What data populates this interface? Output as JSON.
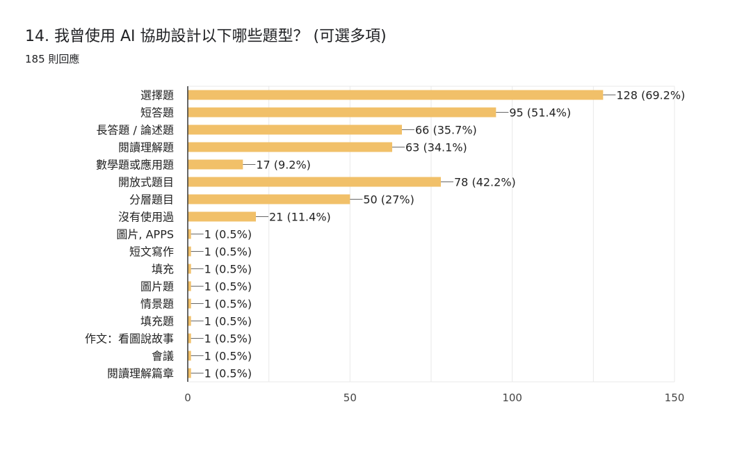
{
  "header": {
    "title": "14. 我曾使用 AI 協助設計以下哪些題型？ (可選多項)",
    "responses": "185 則回應"
  },
  "chart_data": {
    "type": "bar",
    "orientation": "horizontal",
    "categories": [
      "選擇題",
      "短答題",
      "長答題 / 論述題",
      "閱讀理解題",
      "數學題或應用題",
      "開放式題目",
      "分層題目",
      "沒有使用過",
      "圖片, APPS",
      "短文寫作",
      "填充",
      "圖片題",
      "情景題",
      "填充題",
      "作文：看圖說故事",
      "會議",
      "閱讀理解篇章"
    ],
    "values": [
      128,
      95,
      66,
      63,
      17,
      78,
      50,
      21,
      1,
      1,
      1,
      1,
      1,
      1,
      1,
      1,
      1
    ],
    "data_labels": [
      "128 (69.2%)",
      "95 (51.4%)",
      "66 (35.7%)",
      "63 (34.1%)",
      "17 (9.2%)",
      "78 (42.2%)",
      "50 (27%)",
      "21 (11.4%)",
      "1 (0.5%)",
      "1 (0.5%)",
      "1 (0.5%)",
      "1 (0.5%)",
      "1 (0.5%)",
      "1 (0.5%)",
      "1 (0.5%)",
      "1 (0.5%)",
      "1 (0.5%)"
    ],
    "xlim": [
      0,
      150
    ],
    "xticks": [
      0,
      50,
      100,
      150
    ],
    "grid": true,
    "bar_color": "#f1c069",
    "grid_color": "#e8e8e8",
    "axis_color": "#333333"
  }
}
